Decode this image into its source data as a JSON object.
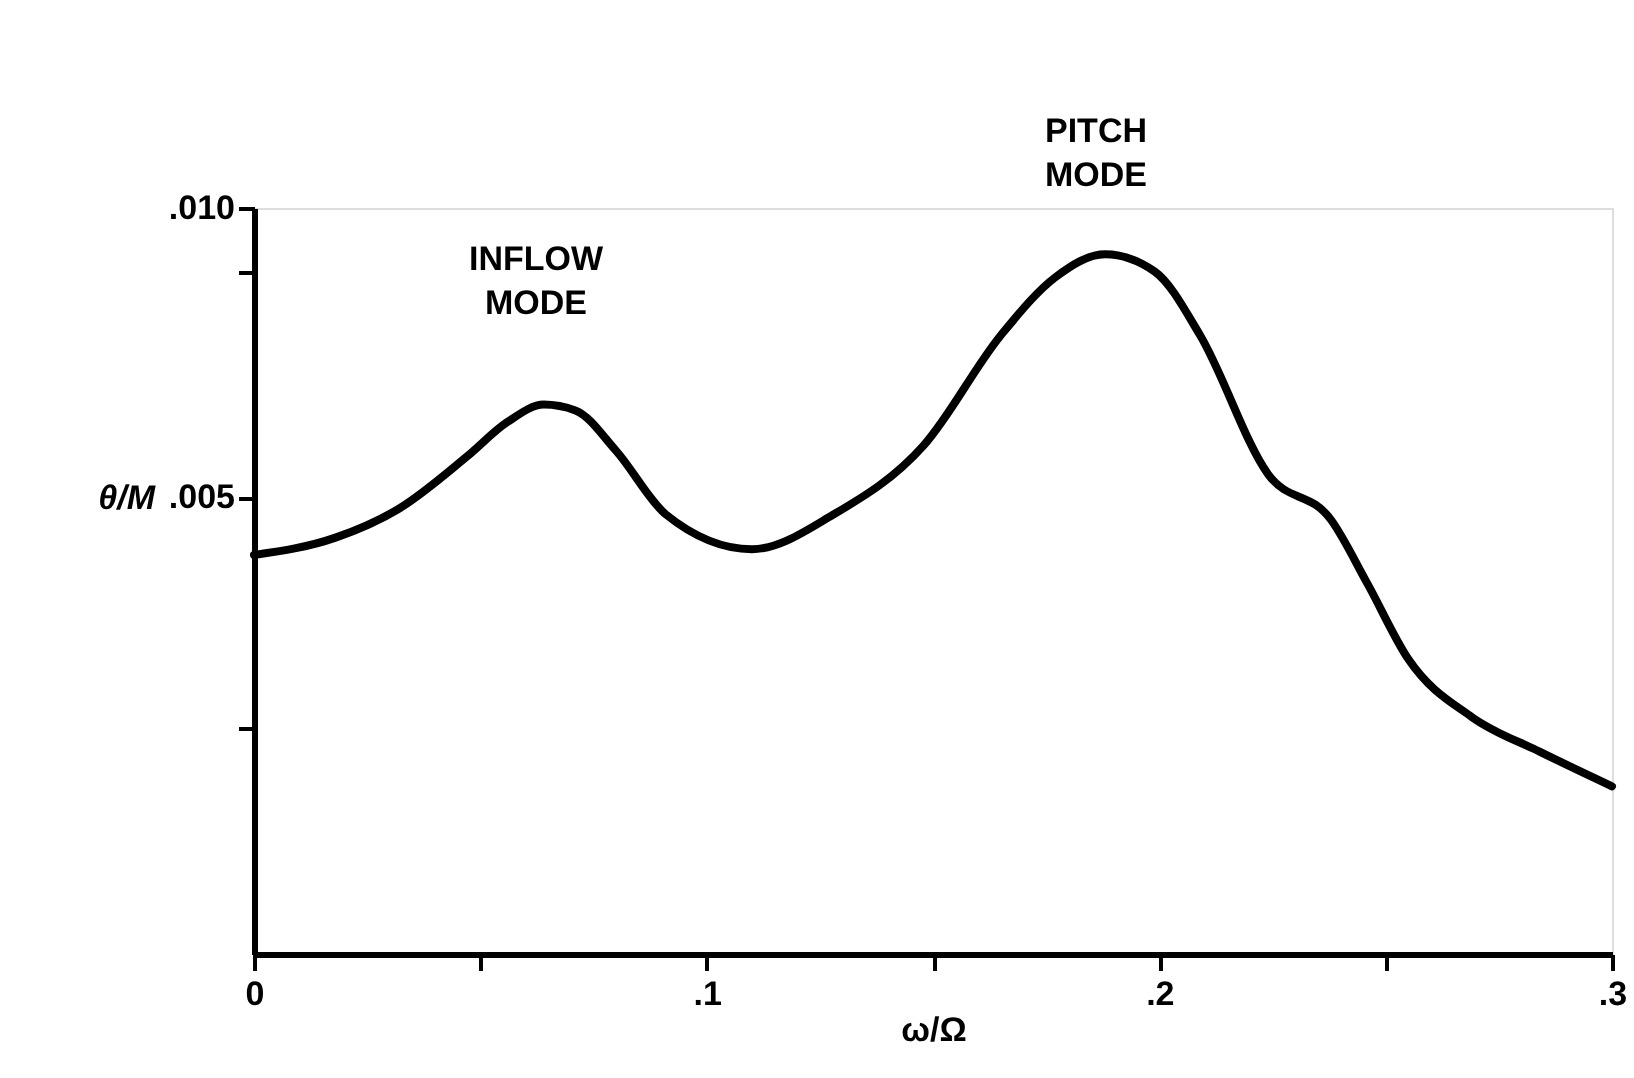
{
  "chart_data": {
    "type": "line",
    "xlabel": "ω/Ω",
    "ylabel": "θ/M",
    "x": [
      0,
      0.018,
      0.032,
      0.047,
      0.056,
      0.064,
      0.071,
      0.08,
      0.091,
      0.11,
      0.128,
      0.148,
      0.165,
      0.177,
      0.188,
      0.199,
      0.209,
      0.224,
      0.238,
      0.246,
      0.255,
      0.269,
      0.284,
      0.3
    ],
    "series": [
      {
        "color": "#000000",
        "values": [
          0.004,
          0.0043,
          0.0048,
          0.0057,
          0.0063,
          0.0066,
          0.0065,
          0.0058,
          0.0047,
          0.0041,
          0.0047,
          0.0059,
          0.0078,
          0.0088,
          0.0092,
          0.0089,
          0.0078,
          0.0054,
          0.0046,
          0.0035,
          0.0022,
          0.0012,
          0.0006,
          0.0
        ]
      }
    ],
    "xlim": [
      0,
      0.3
    ],
    "xticks": [
      0,
      {
        "value": 0.05,
        "label": null
      },
      {
        "value": 0.1,
        "label": ".1"
      },
      {
        "value": 0.15,
        "label": null
      },
      {
        "value": 0.2,
        "label": ".2"
      },
      {
        "value": 0.25,
        "label": null
      },
      {
        "value": 0.3,
        "label": ".3"
      }
    ],
    "ylim": [
      -0.0029,
      0.01
    ],
    "yticks": [
      {
        "value": 0.001,
        "label": null
      },
      {
        "value": 0.005,
        "label": ".005"
      },
      {
        "value": 0.0089,
        "label": null
      },
      {
        "value": 0.01,
        "label": ".010"
      }
    ],
    "annotations": [
      "INFLOW MODE",
      "PITCH MODE"
    ],
    "grid": false,
    "marker": "none",
    "line_style": "solid"
  }
}
